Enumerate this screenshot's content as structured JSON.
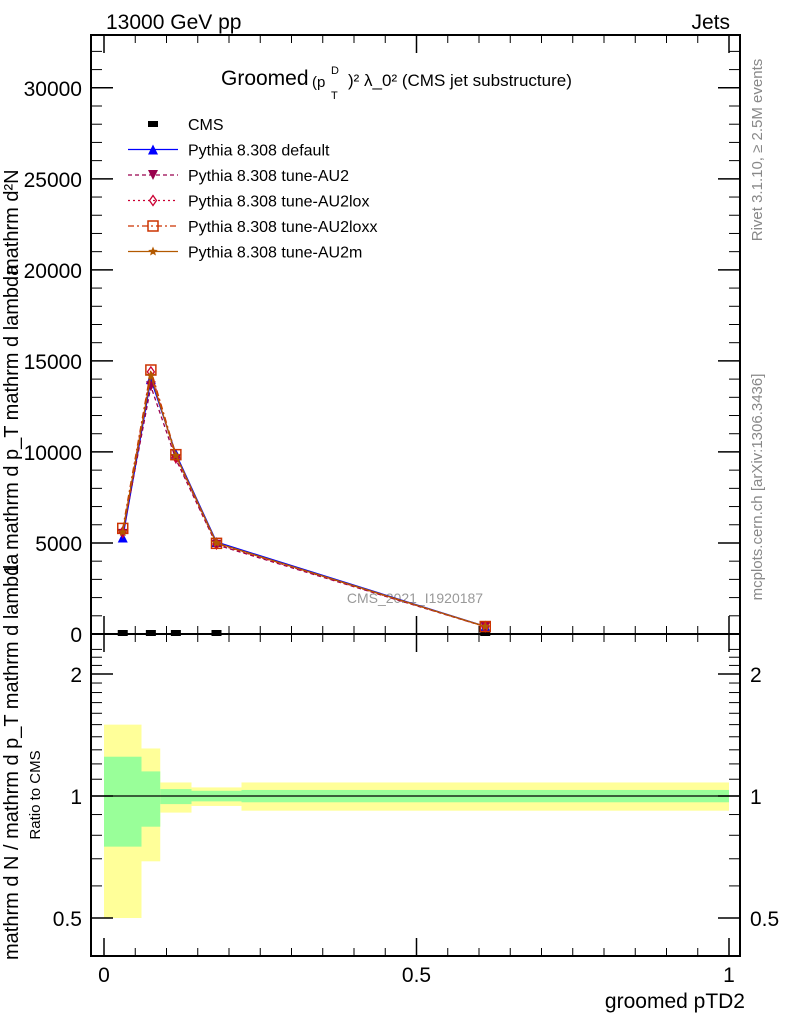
{
  "header": {
    "left": "13000 GeV pp",
    "right": "Jets"
  },
  "side_labels": {
    "rivet": "Rivet 3.1.10, ≥ 2.5M events",
    "mcplots": "mcplots.cern.ch [arXiv:1306.3436]"
  },
  "chart_data": [
    {
      "type": "line",
      "title_main": "Groomed",
      "title_p": "(p",
      "title_sup_d": "D",
      "title_sub_t": "T",
      "title_rest": ")² λ_0² (CMS jet substructure)",
      "ylabel_num": "mathrm d²N",
      "ylabel_num2": "mathrm d p_T mathrm d lambda",
      "ylabel_den": "1",
      "ylabel_den2": "mathrm d N / mathrm d p_T mathrm d lambda",
      "watermark": "CMS_2021_I1920187",
      "x": [
        0.03,
        0.075,
        0.115,
        0.18,
        0.61
      ],
      "xlim": [
        -0.02,
        1.02
      ],
      "ylim": [
        0,
        32900
      ],
      "yticks": [
        0,
        5000,
        10000,
        15000,
        20000,
        25000,
        30000
      ],
      "ytick_labels": [
        "0",
        "5000",
        "10000",
        "15000",
        "20000",
        "25000",
        "30000"
      ],
      "legend_position": "top-left",
      "series": [
        {
          "name": "CMS",
          "color": "#000000",
          "marker": "square-filled",
          "dash": "none",
          "values": [
            20,
            20,
            20,
            20,
            20
          ]
        },
        {
          "name": "Pythia 8.308 default",
          "color": "#0000ff",
          "marker": "triangle-up",
          "dash": "",
          "values": [
            5300,
            14000,
            9900,
            5050,
            420
          ]
        },
        {
          "name": "Pythia 8.308 tune-AU2",
          "color": "#99004d",
          "marker": "triangle-down",
          "dash": "4,3",
          "values": [
            5500,
            13600,
            9600,
            4900,
            400
          ]
        },
        {
          "name": "Pythia 8.308 tune-AU2lox",
          "color": "#cc0033",
          "marker": "diamond-open",
          "dash": "2,3",
          "values": [
            5600,
            14400,
            9700,
            4950,
            400
          ]
        },
        {
          "name": "Pythia 8.308 tune-AU2loxx",
          "color": "#cc3300",
          "marker": "square-open",
          "dash": "6,3,2,3",
          "values": [
            5800,
            14500,
            9850,
            4980,
            410
          ]
        },
        {
          "name": "Pythia 8.308 tune-AU2m",
          "color": "#b35900",
          "marker": "star",
          "dash": "",
          "values": [
            5600,
            14200,
            9800,
            5000,
            410
          ]
        }
      ]
    },
    {
      "type": "area",
      "ylabel": "Ratio to CMS",
      "xlabel": "groomed pTD2",
      "yscale": "log",
      "ylim": [
        0.41,
        2.37
      ],
      "yticks": [
        0.5,
        1,
        2
      ],
      "ytick_labels": [
        "0.5",
        "1",
        "2"
      ],
      "xticks": [
        0,
        0.5,
        1
      ],
      "xtick_labels": [
        "0",
        "0.5",
        "1"
      ],
      "bin_edges": [
        0,
        0.06,
        0.09,
        0.14,
        0.22,
        1.0
      ],
      "band_stat": {
        "color": "#99ff99",
        "low": [
          0.75,
          0.84,
          0.955,
          0.97,
          0.965
        ],
        "high": [
          1.25,
          1.15,
          1.04,
          1.03,
          1.035
        ]
      },
      "band_total": {
        "color": "#ffff99",
        "low": [
          0.5,
          0.69,
          0.91,
          0.945,
          0.92
        ],
        "high": [
          1.5,
          1.31,
          1.08,
          1.05,
          1.08
        ]
      }
    }
  ]
}
